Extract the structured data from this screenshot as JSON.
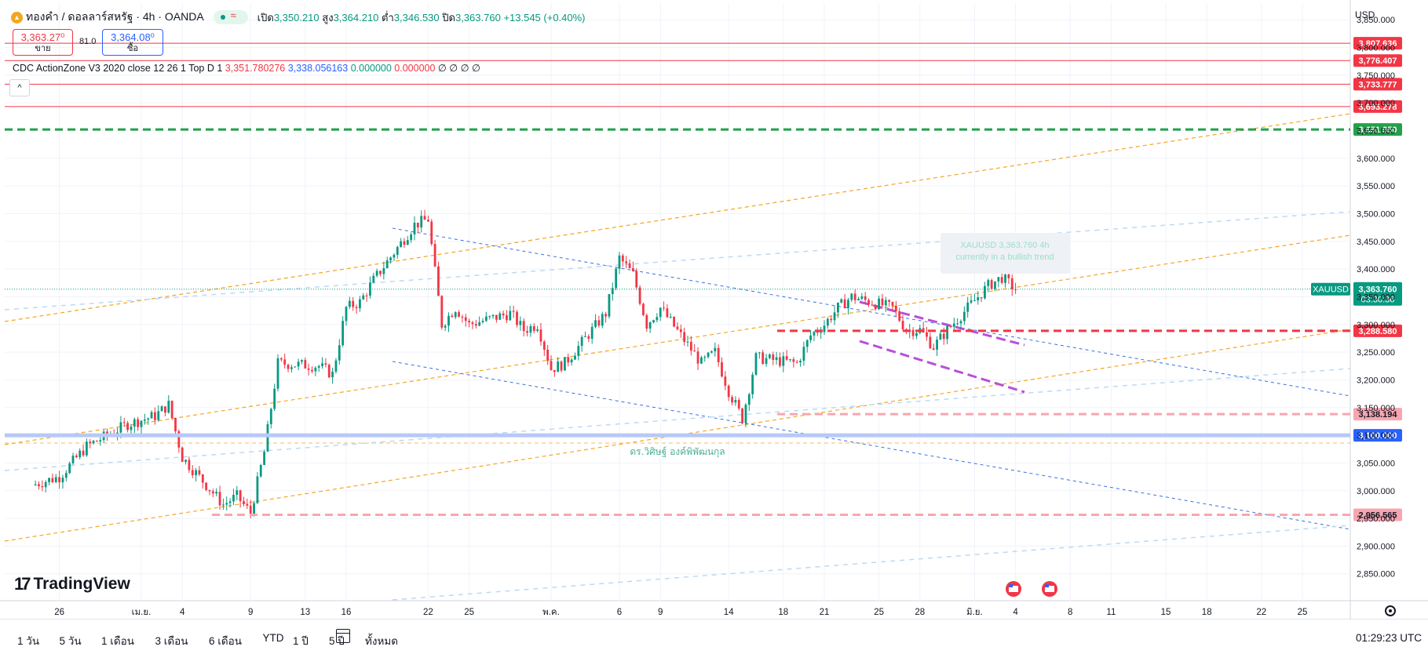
{
  "header": {
    "title": "ทองคำ / ดอลลาร์สหรัฐ · 4h · OANDA",
    "icon": "gold-coin-icon",
    "ohlc": [
      {
        "label": "เปิด",
        "value": "3,350.210"
      },
      {
        "label": "สูง",
        "value": "3,364.210"
      },
      {
        "label": "ต่ำ",
        "value": "3,346.530"
      },
      {
        "label": "ปิด",
        "value": "3,363.760"
      },
      {
        "label": "",
        "value": "+13.545 (+0.40%)"
      }
    ],
    "sell_price": "3,363.27⁰",
    "sell_label": "ขาย",
    "spread": "81.0",
    "buy_price": "3,364.08⁰",
    "buy_label": "ซื้อ"
  },
  "indicator": {
    "name": "CDC ActionZone V3 2020 close 12 26 1 Top D 1",
    "values": [
      "3,351.780276",
      "3,338.056163",
      "0.000000",
      "0.000000",
      "∅ ∅ ∅ ∅"
    ],
    "colors": [
      "#f23645",
      "#2962ff",
      "#089981",
      "#f23645",
      "#131722"
    ]
  },
  "collapse_label": "^",
  "currency": "USD",
  "watermark": "TradingView",
  "author_label": "ดร.วิศิษฐ์ องค์พิพัฒนกุล",
  "tooltip_lines": [
    "XAUUSD 3,363.760 4h",
    "currently in a bullish trend"
  ],
  "chart_data": {
    "type": "candlestick",
    "symbol": "XAUUSD",
    "timeframe": "4h",
    "ylim": [
      2810,
      3880
    ],
    "y_ticks": [
      "3,850.000",
      "3,800.000",
      "3,750.000",
      "3,700.000",
      "3,650.000",
      "3,600.000",
      "3,550.000",
      "3,500.000",
      "3,450.000",
      "3,400.000",
      "3,350.000",
      "3,300.000",
      "3,250.000",
      "3,200.000",
      "3,150.000",
      "3,100.000",
      "3,050.000",
      "3,000.000",
      "2,950.000",
      "2,900.000",
      "2,850.000"
    ],
    "x_ticks": [
      "26",
      "เม.ย.",
      "4",
      "9",
      "13",
      "16",
      "22",
      "25",
      "พ.ค.",
      "6",
      "9",
      "14",
      "18",
      "21",
      "25",
      "28",
      "มิ.ย.",
      "4",
      "8",
      "11",
      "15",
      "18",
      "22",
      "25"
    ],
    "price_path": [
      [
        "2025-03-24",
        3010
      ],
      [
        "2025-03-26",
        3025
      ],
      [
        "2025-03-28",
        3080
      ],
      [
        "2025-03-31",
        3120
      ],
      [
        "2025-04-02",
        3135
      ],
      [
        "2025-04-03",
        3155
      ],
      [
        "2025-04-04",
        3060
      ],
      [
        "2025-04-07",
        2975
      ],
      [
        "2025-04-08",
        2990
      ],
      [
        "2025-04-09",
        2960
      ],
      [
        "2025-04-10",
        3070
      ],
      [
        "2025-04-11",
        3230
      ],
      [
        "2025-04-14",
        3225
      ],
      [
        "2025-04-15",
        3210
      ],
      [
        "2025-04-16",
        3330
      ],
      [
        "2025-04-17",
        3340
      ],
      [
        "2025-04-18",
        3380
      ],
      [
        "2025-04-21",
        3480
      ],
      [
        "2025-04-22",
        3490
      ],
      [
        "2025-04-23",
        3300
      ],
      [
        "2025-04-24",
        3330
      ],
      [
        "2025-04-25",
        3300
      ],
      [
        "2025-04-28",
        3320
      ],
      [
        "2025-04-29",
        3290
      ],
      [
        "2025-04-30",
        3300
      ],
      [
        "2025-05-01",
        3220
      ],
      [
        "2025-05-02",
        3230
      ],
      [
        "2025-05-05",
        3320
      ],
      [
        "2025-05-06",
        3420
      ],
      [
        "2025-05-07",
        3390
      ],
      [
        "2025-05-08",
        3300
      ],
      [
        "2025-05-09",
        3330
      ],
      [
        "2025-05-12",
        3230
      ],
      [
        "2025-05-13",
        3250
      ],
      [
        "2025-05-14",
        3180
      ],
      [
        "2025-05-15",
        3130
      ],
      [
        "2025-05-16",
        3240
      ],
      [
        "2025-05-19",
        3230
      ],
      [
        "2025-05-20",
        3280
      ],
      [
        "2025-05-21",
        3300
      ],
      [
        "2025-05-22",
        3330
      ],
      [
        "2025-05-23",
        3350
      ],
      [
        "2025-05-26",
        3330
      ],
      [
        "2025-05-27",
        3290
      ],
      [
        "2025-05-28",
        3290
      ],
      [
        "2025-05-29",
        3260
      ],
      [
        "2025-05-30",
        3290
      ],
      [
        "2025-06-02",
        3370
      ],
      [
        "2025-06-03",
        3385
      ],
      [
        "2025-06-04",
        3363.76
      ]
    ],
    "last_price": "3,363.760",
    "countdown": "03:30:36",
    "levels": [
      {
        "value": 3807.636,
        "label": "3,807.636",
        "color": "#f23645",
        "style": "solid"
      },
      {
        "value": 3776.407,
        "label": "3,776.407",
        "color": "#f23645",
        "style": "solid"
      },
      {
        "value": 3733.777,
        "label": "3,733.777",
        "color": "#f23645",
        "style": "solid"
      },
      {
        "value": 3693.278,
        "label": "3,693.278",
        "color": "#f23645",
        "style": "solid"
      },
      {
        "value": 3651.95,
        "label": "3,651.950",
        "color": "#22a14a",
        "style": "dashed"
      },
      {
        "value": 3288.58,
        "label": "3,288.580",
        "color": "#f23645",
        "style": "dashed"
      },
      {
        "value": 3138.194,
        "label": "3,138.194",
        "color": "#f7a6b0",
        "style": "dashed"
      },
      {
        "value": 3100.0,
        "label": "3,100.000",
        "color": "#2962ff",
        "style": "band"
      },
      {
        "value": 2956.565,
        "label": "2,956.565",
        "color": "#f7a6b0",
        "style": "dashed"
      }
    ],
    "bottom_time_label": "01:29:23 UTC"
  },
  "ranges": [
    "1 วัน",
    "5 วัน",
    "1 เดือน",
    "3 เดือน",
    "6 เดือน",
    "YTD",
    "1 ปี",
    "5 ปี",
    "ทั้งหมด"
  ]
}
